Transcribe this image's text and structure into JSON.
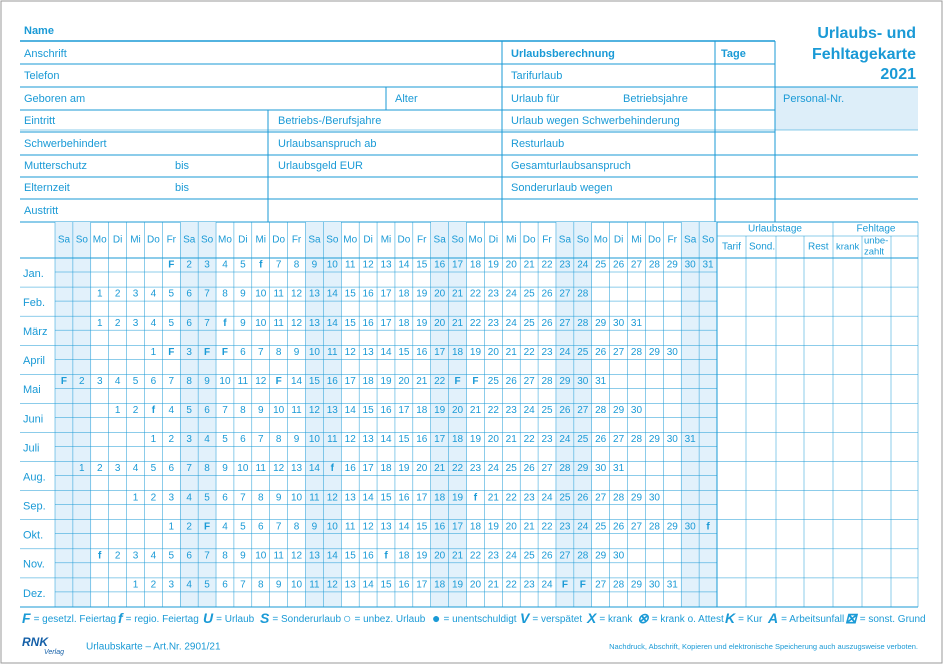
{
  "header": {
    "name": "Name",
    "title": [
      "Urlaubs- und",
      "Fehltagekarte",
      "2021"
    ],
    "personal_nr": "Personal-Nr."
  },
  "form": {
    "left": [
      "Anschrift",
      "Telefon",
      "Geboren am",
      "Alter",
      "Eintritt",
      "Betriebs-/Berufsjahre",
      "Schwerbehindert",
      "Urlaubsanspruch ab",
      "Mutterschutz",
      "bis",
      "Urlaubsgeld EUR",
      "Elternzeit",
      "bis",
      "Austritt"
    ],
    "calculation": [
      "Urlaubsberechnung",
      "Tage",
      "Tarifurlaub",
      "Urlaub für",
      "Betriebsjahre",
      "Urlaub wegen Schwerbehinderung",
      "Resturlaub",
      "Gesamturlaubsanspruch",
      "Sonderurlaub wegen"
    ]
  },
  "calendar": {
    "weekdays": [
      "Sa",
      "So",
      "Mo",
      "Di",
      "Mi",
      "Do",
      "Fr",
      "Sa",
      "So",
      "Mo",
      "Di",
      "Mi",
      "Do",
      "Fr",
      "Sa",
      "So",
      "Mo",
      "Di",
      "Mi",
      "Do",
      "Fr",
      "Sa",
      "So",
      "Mo",
      "Di",
      "Mi",
      "Do",
      "Fr",
      "Sa",
      "So",
      "Mo",
      "Di",
      "Mi",
      "Do",
      "Fr",
      "Sa",
      "So"
    ],
    "months": [
      {
        "label": "Jan.",
        "days": [
          null,
          null,
          null,
          null,
          null,
          null,
          "F",
          2,
          3,
          4,
          5,
          "f",
          7,
          8,
          9,
          10,
          11,
          12,
          13,
          14,
          15,
          16,
          17,
          18,
          19,
          20,
          21,
          22,
          23,
          24,
          25,
          26,
          27,
          28,
          29,
          30,
          31
        ]
      },
      {
        "label": "Feb.",
        "days": [
          null,
          null,
          1,
          2,
          3,
          4,
          5,
          6,
          7,
          8,
          9,
          10,
          11,
          12,
          13,
          14,
          15,
          16,
          17,
          18,
          19,
          20,
          21,
          22,
          23,
          24,
          25,
          26,
          27,
          28,
          null,
          null,
          null,
          null,
          null,
          null,
          null
        ]
      },
      {
        "label": "März",
        "days": [
          null,
          null,
          1,
          2,
          3,
          4,
          5,
          6,
          7,
          "f",
          9,
          10,
          11,
          12,
          13,
          14,
          15,
          16,
          17,
          18,
          19,
          20,
          21,
          22,
          23,
          24,
          25,
          26,
          27,
          28,
          29,
          30,
          31,
          null,
          null,
          null,
          null
        ]
      },
      {
        "label": "April",
        "days": [
          null,
          null,
          null,
          null,
          null,
          1,
          "F",
          3,
          "F",
          "F",
          6,
          7,
          8,
          9,
          10,
          11,
          12,
          13,
          14,
          15,
          16,
          17,
          18,
          19,
          20,
          21,
          22,
          23,
          24,
          25,
          26,
          27,
          28,
          29,
          30,
          null,
          null
        ]
      },
      {
        "label": "Mai",
        "days": [
          "F",
          2,
          3,
          4,
          5,
          6,
          7,
          8,
          9,
          10,
          11,
          12,
          "F",
          14,
          15,
          16,
          17,
          18,
          19,
          20,
          21,
          22,
          "F",
          "F",
          25,
          26,
          27,
          28,
          29,
          30,
          31,
          null,
          null,
          null,
          null,
          null,
          null
        ]
      },
      {
        "label": "Juni",
        "days": [
          null,
          null,
          null,
          1,
          2,
          "f",
          4,
          5,
          6,
          7,
          8,
          9,
          10,
          11,
          12,
          13,
          14,
          15,
          16,
          17,
          18,
          19,
          20,
          21,
          22,
          23,
          24,
          25,
          26,
          27,
          28,
          29,
          30,
          null,
          null,
          null,
          null
        ]
      },
      {
        "label": "Juli",
        "days": [
          null,
          null,
          null,
          null,
          null,
          1,
          2,
          3,
          4,
          5,
          6,
          7,
          8,
          9,
          10,
          11,
          12,
          13,
          14,
          15,
          16,
          17,
          18,
          19,
          20,
          21,
          22,
          23,
          24,
          25,
          26,
          27,
          28,
          29,
          30,
          31,
          null
        ]
      },
      {
        "label": "Aug.",
        "days": [
          null,
          1,
          2,
          3,
          4,
          5,
          6,
          7,
          8,
          9,
          10,
          11,
          12,
          13,
          14,
          "f",
          16,
          17,
          18,
          19,
          20,
          21,
          22,
          23,
          24,
          25,
          26,
          27,
          28,
          29,
          30,
          31,
          null,
          null,
          null,
          null,
          null
        ]
      },
      {
        "label": "Sep.",
        "days": [
          null,
          null,
          null,
          null,
          1,
          2,
          3,
          4,
          5,
          6,
          7,
          8,
          9,
          10,
          11,
          12,
          13,
          14,
          15,
          16,
          17,
          18,
          19,
          "f",
          21,
          22,
          23,
          24,
          25,
          26,
          27,
          28,
          29,
          30,
          null,
          null,
          null
        ]
      },
      {
        "label": "Okt.",
        "days": [
          null,
          null,
          null,
          null,
          null,
          null,
          1,
          2,
          "F",
          4,
          5,
          6,
          7,
          8,
          9,
          10,
          11,
          12,
          13,
          14,
          15,
          16,
          17,
          18,
          19,
          20,
          21,
          22,
          23,
          24,
          25,
          26,
          27,
          28,
          29,
          30,
          "f"
        ]
      },
      {
        "label": "Nov.",
        "days": [
          null,
          null,
          "f",
          2,
          3,
          4,
          5,
          6,
          7,
          8,
          9,
          10,
          11,
          12,
          13,
          14,
          15,
          16,
          "f",
          18,
          19,
          20,
          21,
          22,
          23,
          24,
          25,
          26,
          27,
          28,
          29,
          30,
          null,
          null,
          null,
          null,
          null
        ]
      },
      {
        "label": "Dez.",
        "days": [
          null,
          null,
          null,
          null,
          1,
          2,
          3,
          4,
          5,
          6,
          7,
          8,
          9,
          10,
          11,
          12,
          13,
          14,
          15,
          16,
          17,
          18,
          19,
          20,
          21,
          22,
          23,
          24,
          "F",
          "F",
          27,
          28,
          29,
          30,
          31,
          null,
          null
        ]
      }
    ],
    "vacation": {
      "title": "Urlaubstage",
      "columns": [
        "Tarif",
        "Sond.",
        "Rest"
      ]
    },
    "absence": {
      "title": "Fehltage",
      "columns": [
        "krank",
        "unbe-",
        "zahlt"
      ]
    }
  },
  "legend": [
    {
      "symbol": "F",
      "text": "= gesetzl. Feiertag"
    },
    {
      "symbol": "f",
      "text": "= regio. Feiertag"
    },
    {
      "symbol": "U",
      "text": "= Urlaub"
    },
    {
      "symbol": "S",
      "text": "= Sonderurlaub"
    },
    {
      "symbol": "○",
      "text": "= unbez. Urlaub"
    },
    {
      "symbol": "●",
      "text": "= unentschuldigt"
    },
    {
      "symbol": "V",
      "text": "= verspätet"
    },
    {
      "symbol": "X",
      "text": "= krank"
    },
    {
      "symbol": "⊗",
      "text": "= krank o. Attest"
    },
    {
      "symbol": "K",
      "text": "= Kur"
    },
    {
      "symbol": "A",
      "text": "= Arbeitsunfall"
    },
    {
      "symbol": "⊠",
      "text": "= sonst. Grund"
    }
  ],
  "footer": {
    "publisher": "RNK",
    "publisher_sub": "Verlag",
    "article": "Urlaubskarte – Art.Nr. 2901/21",
    "notice": "Nachdruck, Abschrift, Kopieren und elektronische Speicherung auch auszugsweise verboten."
  }
}
